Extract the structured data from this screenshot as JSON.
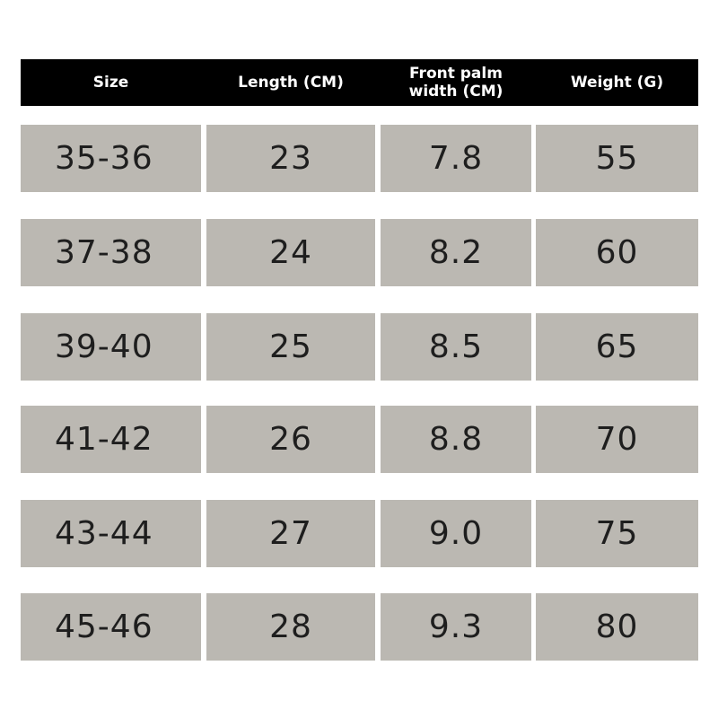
{
  "table": {
    "headers": [
      "Size",
      "Length (CM)",
      "Front palm width (CM)",
      "Weight (G)"
    ],
    "rows": [
      [
        "35-36",
        "23",
        "7.8",
        "55"
      ],
      [
        "37-38",
        "24",
        "8.2",
        "60"
      ],
      [
        "39-40",
        "25",
        "8.5",
        "65"
      ],
      [
        "41-42",
        "26",
        "8.8",
        "70"
      ],
      [
        "43-44",
        "27",
        "9.0",
        "75"
      ],
      [
        "45-46",
        "28",
        "9.3",
        "80"
      ]
    ]
  },
  "colors": {
    "header_bg": "#000000",
    "cell_bg": "#bbb8b2",
    "cell_text": "#1e1e1e"
  }
}
